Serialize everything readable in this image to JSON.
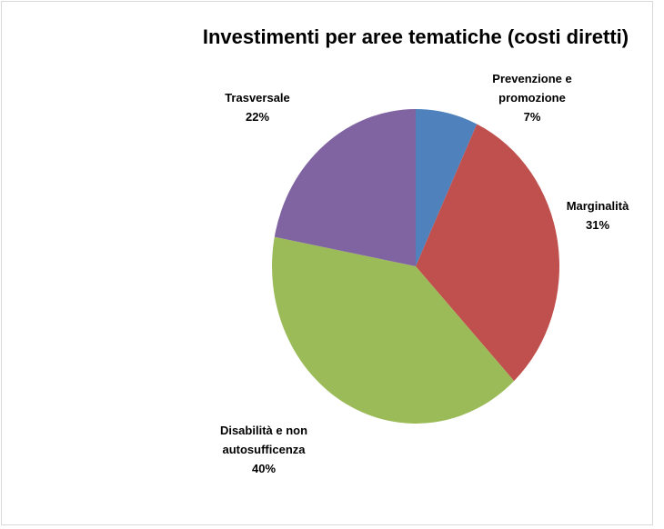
{
  "chart_data": {
    "type": "pie",
    "title": "Investimenti per aree tematiche (costi diretti)",
    "categories": [
      "Prevenzione e promozione",
      "Marginalità",
      "Disabilità e non autosufficenza",
      "Trasversale"
    ],
    "values": [
      7,
      31,
      40,
      22
    ],
    "value_labels": [
      "7%",
      "31%",
      "40%",
      "22%"
    ],
    "colors": [
      "#4f81bd",
      "#c0504d",
      "#9bbb59",
      "#8064a2"
    ]
  }
}
